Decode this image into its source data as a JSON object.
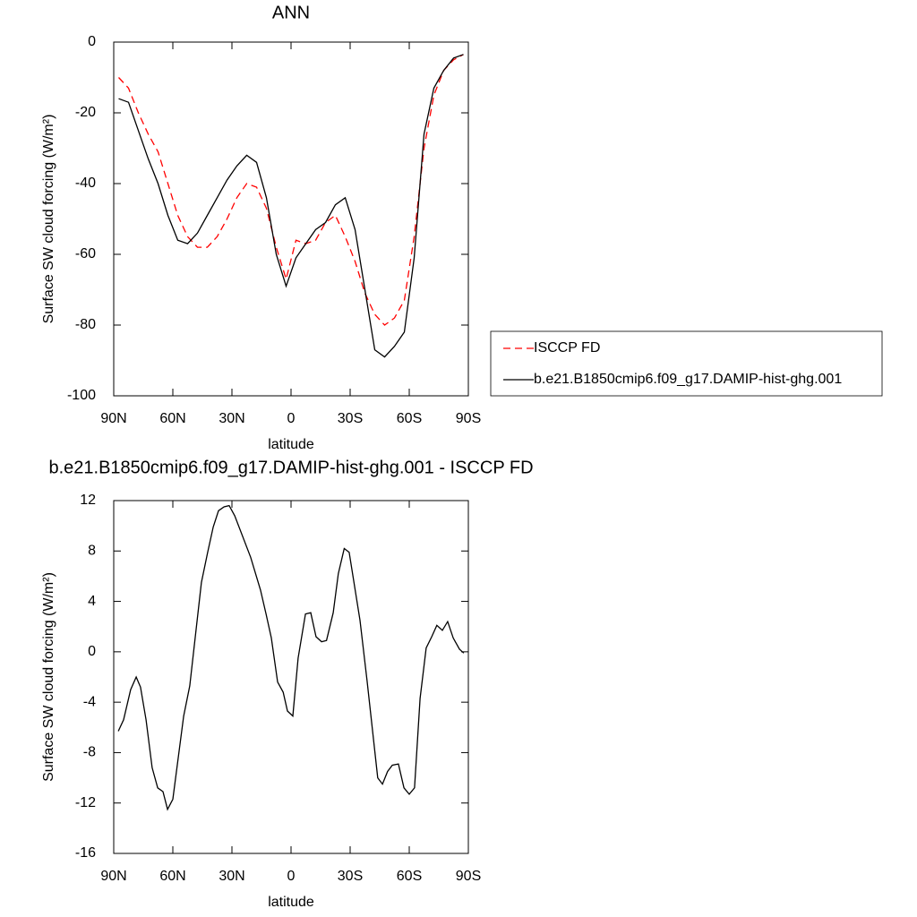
{
  "chart_data": [
    {
      "type": "line",
      "title": "ANN",
      "x_label": "latitude",
      "y_label": "Surface SW cloud forcing (W/m²)",
      "x": [
        87.5,
        82.5,
        77.5,
        72.5,
        67.5,
        62.5,
        57.5,
        52.5,
        47.5,
        42.5,
        37.5,
        32.5,
        27.5,
        22.5,
        17.5,
        12.5,
        7.5,
        2.5,
        -2.5,
        -7.5,
        -12.5,
        -17.5,
        -22.5,
        -27.5,
        -32.5,
        -37.5,
        -42.5,
        -47.5,
        -52.5,
        -57.5,
        -62.5,
        -67.5,
        -72.5,
        -77.5,
        -82.5,
        -87.5
      ],
      "series": [
        {
          "name": "ISCCP FD",
          "color": "#ff0000",
          "dashed": true,
          "values": [
            -10,
            -13,
            -20,
            -26,
            -31,
            -40,
            -49,
            -55,
            -58,
            -58,
            -55,
            -50,
            -44,
            -40,
            -41,
            -47,
            -58,
            -67,
            -56,
            -57,
            -56,
            -51,
            -49,
            -55,
            -62,
            -71,
            -77,
            -80,
            -78,
            -73,
            -55,
            -30,
            -15,
            -8,
            -5,
            -3.5
          ]
        },
        {
          "name": "b.e21.B1850cmip6.f09_g17.DAMIP-hist-ghg.001",
          "color": "#000000",
          "dashed": false,
          "values": [
            -16,
            -17,
            -25,
            -33,
            -40,
            -49,
            -56,
            -57,
            -54,
            -49,
            -44,
            -39,
            -35,
            -32,
            -34,
            -44,
            -60,
            -69,
            -61,
            -57,
            -53,
            -51,
            -46,
            -44,
            -53,
            -70,
            -87,
            -89,
            -86,
            -82,
            -61,
            -26,
            -13,
            -8,
            -4.5,
            -3.5
          ]
        }
      ],
      "xlim": [
        90,
        -90
      ],
      "ylim": [
        -100,
        0
      ],
      "xticks": [
        {
          "value": 90,
          "label": "90N"
        },
        {
          "value": 60,
          "label": "60N"
        },
        {
          "value": 30,
          "label": "30N"
        },
        0,
        {
          "value": -30,
          "label": "30S"
        },
        {
          "value": -60,
          "label": "60S"
        },
        {
          "value": -90,
          "label": "90S"
        }
      ],
      "yticks": [
        0,
        -20,
        -40,
        -60,
        -80,
        -100
      ],
      "legend": "right"
    },
    {
      "type": "line",
      "title": "b.e21.B1850cmip6.f09_g17.DAMIP-hist-ghg.001 - ISCCP FD",
      "x_label": "latitude",
      "y_label": "Surface SW cloud forcing (W/m²)",
      "x": [
        87.7,
        85,
        81.4,
        78.6,
        76.4,
        73.6,
        70.5,
        67.7,
        65,
        62.7,
        60,
        54.5,
        51.4,
        45.5,
        42.3,
        39.5,
        36.8,
        34,
        31.4,
        28.6,
        20.5,
        15.5,
        12.7,
        10,
        6.8,
        4,
        1.8,
        -0.9,
        -3.6,
        -7.3,
        -10,
        -12.7,
        -15.5,
        -18,
        -21.4,
        -24,
        -27,
        -29.5,
        -35,
        -38.6,
        -44,
        -46.4,
        -49,
        -51.4,
        -54.5,
        -57.3,
        -60,
        -62.7,
        -65.5,
        -68.6,
        -71.4,
        -74,
        -76.8,
        -79.5,
        -82.3,
        -85.5,
        -87.7
      ],
      "values": [
        -6.3,
        -5.4,
        -3,
        -2,
        -2.8,
        -5.4,
        -9.2,
        -10.8,
        -11.1,
        -12.5,
        -11.7,
        -5.1,
        -2.7,
        5.5,
        7.9,
        9.9,
        11.2,
        11.5,
        11.6,
        10.8,
        7.5,
        4.9,
        3,
        1.1,
        -2.4,
        -3.2,
        -4.7,
        -5.1,
        -0.5,
        3,
        3.1,
        1.2,
        0.8,
        0.9,
        3.1,
        6.2,
        8.2,
        7.9,
        2.5,
        -2.3,
        -10,
        -10.5,
        -9.5,
        -9,
        -8.9,
        -10.8,
        -11.3,
        -10.8,
        -3.7,
        0.3,
        1.2,
        2.1,
        1.7,
        2.4,
        1.1,
        0.2,
        -0.1
      ],
      "color": "#000000",
      "xlim": [
        90,
        -90
      ],
      "ylim": [
        -16,
        12
      ],
      "xticks": [
        {
          "value": 90,
          "label": "90N"
        },
        {
          "value": 60,
          "label": "60N"
        },
        {
          "value": 30,
          "label": "30N"
        },
        0,
        {
          "value": -30,
          "label": "30S"
        },
        {
          "value": -60,
          "label": "60S"
        },
        {
          "value": -90,
          "label": "90S"
        }
      ],
      "yticks": [
        12,
        8,
        4,
        0,
        -4,
        -8,
        -12,
        -16
      ]
    }
  ]
}
